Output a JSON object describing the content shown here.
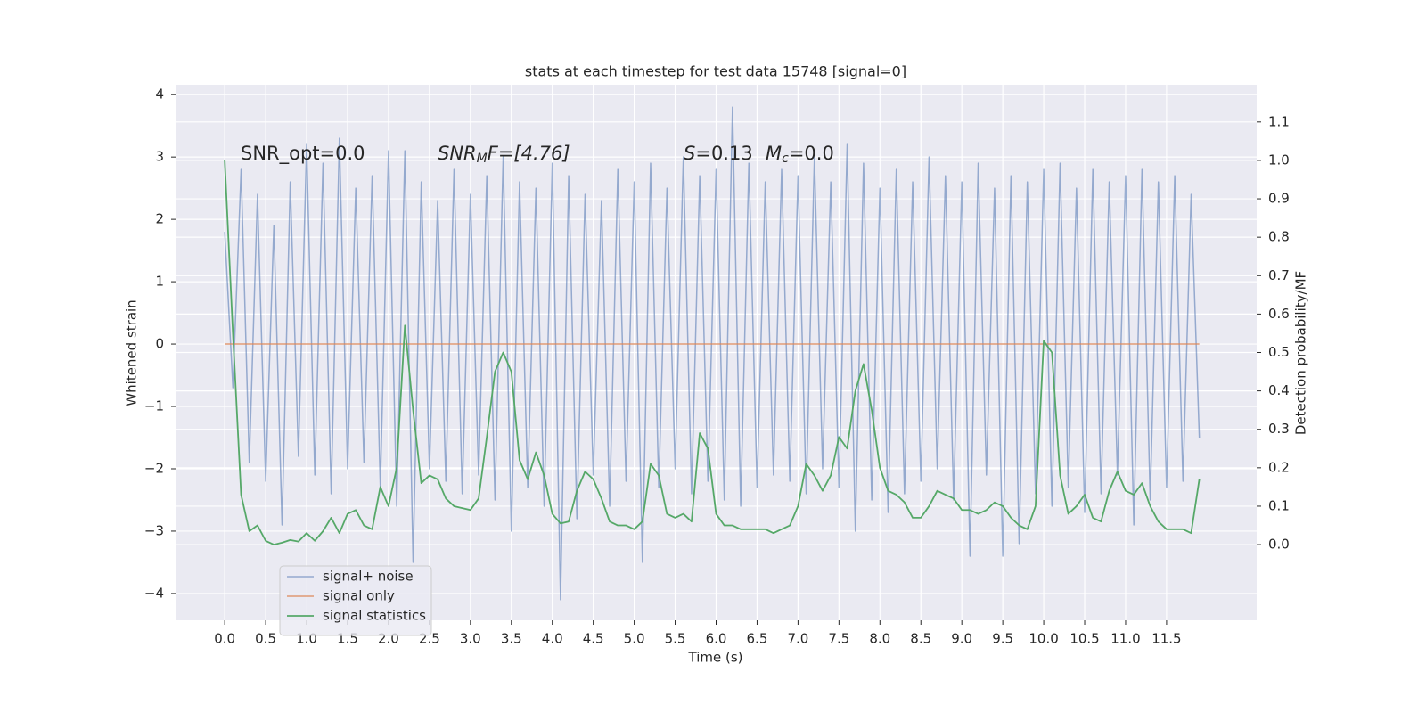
{
  "chart_data": {
    "type": "line",
    "title": "stats at each timestep for test data 15748 [signal=0]",
    "xlabel": "Time (s)",
    "ylabel": "Whitened strain",
    "y2label": "Detection probability/MF",
    "annotations": [
      [
        "SNR_opt=0.0"
      ],
      [
        "SNR",
        "M",
        "F=[4.76]"
      ],
      [
        "S",
        "=0.13"
      ],
      [
        "M",
        "c",
        "=0.0"
      ]
    ],
    "grid": true,
    "legend": "lower left",
    "xlim": [
      -0.6,
      12.6
    ],
    "ylim": [
      -4.43,
      4.16
    ],
    "y2lim": [
      -0.197,
      1.197
    ],
    "xticks": [
      {
        "value": 0,
        "label": "0.0"
      },
      0.5,
      {
        "value": 1,
        "label": "1.0"
      },
      1.5,
      {
        "value": 2,
        "label": "2.0"
      },
      2.5,
      {
        "value": 3,
        "label": "3.0"
      },
      3.5,
      {
        "value": 4,
        "label": "4.0"
      },
      4.5,
      {
        "value": 5,
        "label": "5.0"
      },
      5.5,
      {
        "value": 6,
        "label": "6.0"
      },
      6.5,
      {
        "value": 7,
        "label": "7.0"
      },
      7.5,
      {
        "value": 8,
        "label": "8.0"
      },
      8.5,
      {
        "value": 9,
        "label": "9.0"
      },
      9.5,
      {
        "value": 10,
        "label": "10.0"
      },
      10.5,
      {
        "value": 11,
        "label": "11.0"
      },
      11.5
    ],
    "yticks": [
      {
        "value": -4,
        "label": "−4"
      },
      {
        "value": -3,
        "label": "−3"
      },
      {
        "value": -2,
        "label": "−2"
      },
      {
        "value": -1,
        "label": "−1"
      },
      0,
      1,
      2,
      3,
      4
    ],
    "y2ticks": [
      {
        "value": 0,
        "label": "0.0"
      },
      0.1,
      0.2,
      0.3,
      0.4,
      0.5,
      0.6,
      0.7,
      0.8,
      0.9,
      {
        "value": 1,
        "label": "1.0"
      },
      1.1
    ],
    "x": [
      0,
      0.1,
      0.2,
      0.3,
      0.4,
      0.5,
      0.6,
      0.7,
      0.8,
      0.9,
      1,
      1.1,
      1.2,
      1.3,
      1.4,
      1.5,
      1.6,
      1.7,
      1.8,
      1.9,
      2,
      2.1,
      2.2,
      2.3,
      2.4,
      2.5,
      2.6,
      2.7,
      2.8,
      2.9,
      3,
      3.1,
      3.2,
      3.3,
      3.4,
      3.5,
      3.6,
      3.7,
      3.8,
      3.9,
      4,
      4.1,
      4.2,
      4.3,
      4.4,
      4.5,
      4.6,
      4.7,
      4.8,
      4.9,
      5,
      5.1,
      5.2,
      5.3,
      5.4,
      5.5,
      5.6,
      5.7,
      5.8,
      5.9,
      6,
      6.1,
      6.2,
      6.3,
      6.4,
      6.5,
      6.6,
      6.7,
      6.8,
      6.9,
      7,
      7.1,
      7.2,
      7.3,
      7.4,
      7.5,
      7.6,
      7.7,
      7.8,
      7.9,
      8,
      8.1,
      8.2,
      8.3,
      8.4,
      8.5,
      8.6,
      8.7,
      8.8,
      8.9,
      9,
      9.1,
      9.2,
      9.3,
      9.4,
      9.5,
      9.6,
      9.7,
      9.8,
      9.9,
      10,
      10.1,
      10.2,
      10.3,
      10.4,
      10.5,
      10.6,
      10.7,
      10.8,
      10.9,
      11,
      11.1,
      11.2,
      11.3,
      11.4,
      11.5,
      11.6,
      11.7,
      11.8,
      11.9
    ],
    "series": [
      {
        "name": "signal+ noise",
        "color": "#4c72b0",
        "values": [
          1.8,
          -0.7,
          2.8,
          -1.9,
          2.4,
          -2.2,
          1.9,
          -2.9,
          2.6,
          -1.8,
          3.2,
          -2.1,
          2.9,
          -2.4,
          3.3,
          -2.0,
          2.5,
          -1.9,
          2.7,
          -2.3,
          3.1,
          -2.6,
          3.1,
          -3.5,
          2.6,
          -2.0,
          2.3,
          -2.2,
          2.8,
          -2.4,
          2.4,
          -2.1,
          2.7,
          -2.5,
          3.0,
          -3.0,
          2.6,
          -2.3,
          2.5,
          -2.6,
          2.9,
          -4.1,
          2.7,
          -2.8,
          2.4,
          -2.1,
          2.3,
          -2.6,
          2.8,
          -2.2,
          2.6,
          -3.5,
          2.9,
          -2.3,
          2.5,
          -2.0,
          3.0,
          -2.4,
          2.7,
          -2.2,
          2.8,
          -2.5,
          3.8,
          -2.6,
          2.9,
          -2.3,
          2.6,
          -2.1,
          2.8,
          -2.2,
          2.7,
          -2.4,
          3.0,
          -2.0,
          2.6,
          -2.3,
          3.2,
          -3.0,
          2.9,
          -2.5,
          2.5,
          -2.7,
          2.8,
          -2.4,
          2.6,
          -2.2,
          3.0,
          -2.0,
          2.7,
          -2.5,
          2.6,
          -3.4,
          2.9,
          -2.1,
          2.5,
          -3.4,
          2.7,
          -3.2,
          2.6,
          -2.4,
          2.8,
          -2.6,
          2.9,
          -2.3,
          2.5,
          -2.7,
          2.8,
          -2.4,
          2.6,
          -2.1,
          2.7,
          -2.9,
          2.8,
          -2.5,
          2.6,
          -2.3,
          2.7,
          -2.2,
          2.4,
          -1.5
        ]
      },
      {
        "name": "signal only",
        "color": "#dd8452",
        "values": [
          0,
          0,
          0,
          0,
          0,
          0,
          0,
          0,
          0,
          0,
          0,
          0,
          0,
          0,
          0,
          0,
          0,
          0,
          0,
          0,
          0,
          0,
          0,
          0,
          0,
          0,
          0,
          0,
          0,
          0,
          0,
          0,
          0,
          0,
          0,
          0,
          0,
          0,
          0,
          0,
          0,
          0,
          0,
          0,
          0,
          0,
          0,
          0,
          0,
          0,
          0,
          0,
          0,
          0,
          0,
          0,
          0,
          0,
          0,
          0,
          0,
          0,
          0,
          0,
          0,
          0,
          0,
          0,
          0,
          0,
          0,
          0,
          0,
          0,
          0,
          0,
          0,
          0,
          0,
          0,
          0,
          0,
          0,
          0,
          0,
          0,
          0,
          0,
          0,
          0,
          0,
          0,
          0,
          0,
          0,
          0,
          0,
          0,
          0,
          0,
          0,
          0,
          0,
          0,
          0,
          0,
          0,
          0,
          0,
          0,
          0,
          0,
          0,
          0,
          0,
          0,
          0,
          0,
          0,
          0
        ]
      },
      {
        "name": "signal statistics",
        "color": "#55a868",
        "axis": "y2",
        "values": [
          1.0,
          0.55,
          0.13,
          0.035,
          0.05,
          0.01,
          0.0,
          0.005,
          0.012,
          0.008,
          0.03,
          0.01,
          0.035,
          0.07,
          0.03,
          0.08,
          0.09,
          0.05,
          0.04,
          0.15,
          0.1,
          0.2,
          0.57,
          0.35,
          0.16,
          0.18,
          0.17,
          0.12,
          0.1,
          0.095,
          0.09,
          0.12,
          0.28,
          0.45,
          0.5,
          0.45,
          0.22,
          0.17,
          0.24,
          0.18,
          0.08,
          0.055,
          0.06,
          0.14,
          0.19,
          0.17,
          0.12,
          0.06,
          0.05,
          0.05,
          0.04,
          0.06,
          0.21,
          0.18,
          0.08,
          0.07,
          0.08,
          0.06,
          0.29,
          0.25,
          0.08,
          0.05,
          0.05,
          0.04,
          0.04,
          0.04,
          0.04,
          0.03,
          0.04,
          0.05,
          0.1,
          0.21,
          0.18,
          0.14,
          0.18,
          0.28,
          0.25,
          0.4,
          0.47,
          0.35,
          0.2,
          0.14,
          0.13,
          0.11,
          0.07,
          0.07,
          0.1,
          0.14,
          0.13,
          0.12,
          0.09,
          0.09,
          0.08,
          0.09,
          0.11,
          0.1,
          0.07,
          0.05,
          0.04,
          0.1,
          0.53,
          0.5,
          0.18,
          0.08,
          0.1,
          0.13,
          0.07,
          0.06,
          0.14,
          0.19,
          0.14,
          0.13,
          0.16,
          0.1,
          0.06,
          0.04,
          0.04,
          0.04,
          0.03,
          0.17
        ]
      }
    ]
  }
}
